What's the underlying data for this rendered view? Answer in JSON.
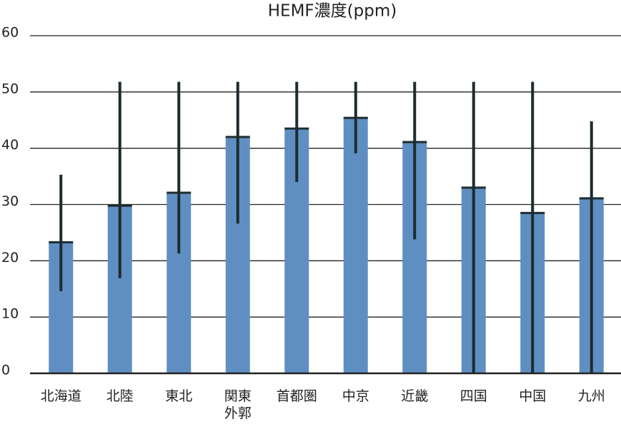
{
  "chart_data": {
    "type": "bar",
    "title": "HEMF濃度(ppm)",
    "categories": [
      "北海道",
      "北陸",
      "東北",
      "関東\n外郭",
      "首都圏",
      "中京",
      "近畿",
      "四国",
      "中国",
      "九州"
    ],
    "values": [
      23.3,
      29.8,
      32.1,
      42.0,
      43.5,
      45.4,
      41.1,
      33.0,
      28.5,
      31.1
    ],
    "error_low": [
      14.6,
      16.9,
      21.3,
      26.6,
      34.0,
      39.1,
      23.8,
      0,
      0,
      0
    ],
    "error_high": [
      35.3,
      51.8,
      51.8,
      51.8,
      51.8,
      51.8,
      51.8,
      51.8,
      51.8,
      44.8
    ],
    "color": "#5f8fc2",
    "error_color": "#1e2b2f",
    "ylim": [
      0,
      60
    ],
    "yticks": [
      0,
      10,
      20,
      30,
      40,
      50,
      60
    ],
    "grid": true
  }
}
